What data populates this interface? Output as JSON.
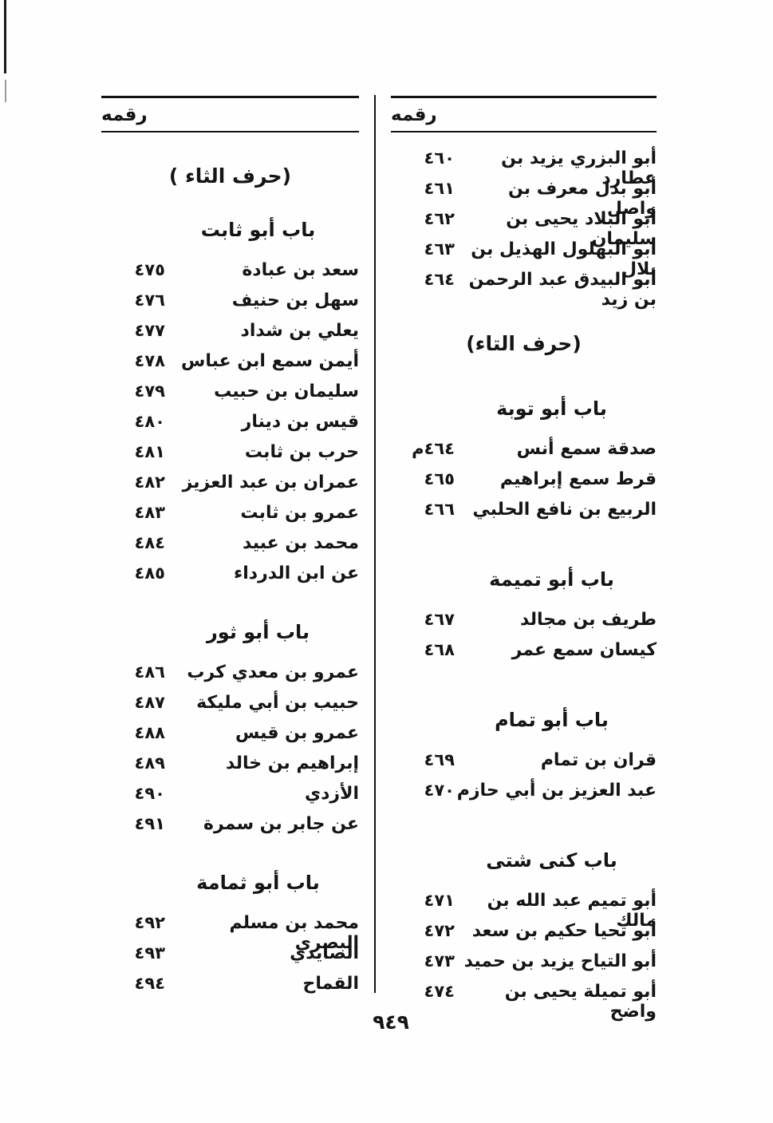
{
  "page_number": "٩٤٩",
  "columns": {
    "right": {
      "header": "رقمه",
      "blocks": [
        {
          "type": "entries",
          "rows": [
            {
              "name": "أبو البزري يزيد بن عطارد",
              "num": "٤٦٠"
            },
            {
              "name": "أبو بدل معرف بن واصل",
              "num": "٤٦١"
            },
            {
              "name": "أبو البلاد يحيى بن سليمان",
              "num": "٤٦٢"
            },
            {
              "name": "أبو البهلول الهذيل بن بلال",
              "num": "٤٦٣"
            },
            {
              "name": "أبو البيدق عبد الرحمن بن زيد",
              "num": "٤٦٤"
            }
          ]
        },
        {
          "type": "letter",
          "text": "(حرف التاء)"
        },
        {
          "type": "section",
          "text": "باب أبو توبة"
        },
        {
          "type": "entries",
          "rows": [
            {
              "name": "صدقة سمع أنس",
              "num": "٤٦٤م"
            },
            {
              "name": "قرط سمع إبراهيم",
              "num": "٤٦٥"
            },
            {
              "name": "الربيع بن نافع الحلبي",
              "num": "٤٦٦"
            }
          ]
        },
        {
          "type": "section",
          "text": "باب أبو تميمة"
        },
        {
          "type": "entries",
          "rows": [
            {
              "name": "طريف بن مجالد",
              "num": "٤٦٧"
            },
            {
              "name": "كيسان سمع عمر",
              "num": "٤٦٨"
            }
          ]
        },
        {
          "type": "section",
          "text": "باب أبو تمام"
        },
        {
          "type": "entries",
          "rows": [
            {
              "name": "قران بن تمام",
              "num": "٤٦٩"
            },
            {
              "name": "عبد العزيز بن أبي حازم",
              "num": "٤٧٠"
            }
          ]
        },
        {
          "type": "section",
          "text": "باب كنى شتى"
        },
        {
          "type": "entries",
          "rows": [
            {
              "name": "أبو تميم عبد الله بن مالك",
              "num": "٤٧١"
            },
            {
              "name": "أبو تحيا حكيم بن سعد",
              "num": "٤٧٢"
            },
            {
              "name": "أبو التياح يزيد بن حميد",
              "num": "٤٧٣"
            },
            {
              "name": "أبو تميلة يحيى بن واضح",
              "num": "٤٧٤"
            }
          ]
        }
      ]
    },
    "left": {
      "header": "رقمه",
      "blocks": [
        {
          "type": "letter",
          "text": "(حرف الثاء )"
        },
        {
          "type": "section",
          "text": "باب أبو ثابت"
        },
        {
          "type": "entries",
          "rows": [
            {
              "name": "سعد بن عبادة",
              "num": "٤٧٥"
            },
            {
              "name": "سهل بن حنيف",
              "num": "٤٧٦"
            },
            {
              "name": "يعلي بن شداد",
              "num": "٤٧٧"
            },
            {
              "name": "أيمن سمع ابن عباس",
              "num": "٤٧٨"
            },
            {
              "name": "سليمان بن حبيب",
              "num": "٤٧٩"
            },
            {
              "name": "قيس بن دينار",
              "num": "٤٨٠"
            },
            {
              "name": "حرب بن ثابت",
              "num": "٤٨١"
            },
            {
              "name": "عمران بن عبد العزيز",
              "num": "٤٨٢"
            },
            {
              "name": "عمرو بن ثابت",
              "num": "٤٨٣"
            },
            {
              "name": "محمد بن عبيد",
              "num": "٤٨٤"
            },
            {
              "name": "عن ابن الدرداء",
              "num": "٤٨٥"
            }
          ]
        },
        {
          "type": "section",
          "text": "باب أبو ثور"
        },
        {
          "type": "entries",
          "rows": [
            {
              "name": "عمرو بن معدي كرب",
              "num": "٤٨٦"
            },
            {
              "name": "حبيب بن أبي مليكة",
              "num": "٤٨٧"
            },
            {
              "name": "عمرو بن قيس",
              "num": "٤٨٨"
            },
            {
              "name": "إبراهيم بن خالد",
              "num": "٤٨٩"
            },
            {
              "name": "الأزدي",
              "num": "٤٩٠"
            },
            {
              "name": "عن جابر بن سمرة",
              "num": "٤٩١"
            }
          ]
        },
        {
          "type": "section",
          "text": "باب أبو ثمامة"
        },
        {
          "type": "entries",
          "rows": [
            {
              "name": "محمد بن مسلم البصري",
              "num": "٤٩٢"
            },
            {
              "name": "الصايدي",
              "num": "٤٩٣"
            },
            {
              "name": "القماح",
              "num": "٤٩٤"
            }
          ]
        }
      ]
    }
  }
}
